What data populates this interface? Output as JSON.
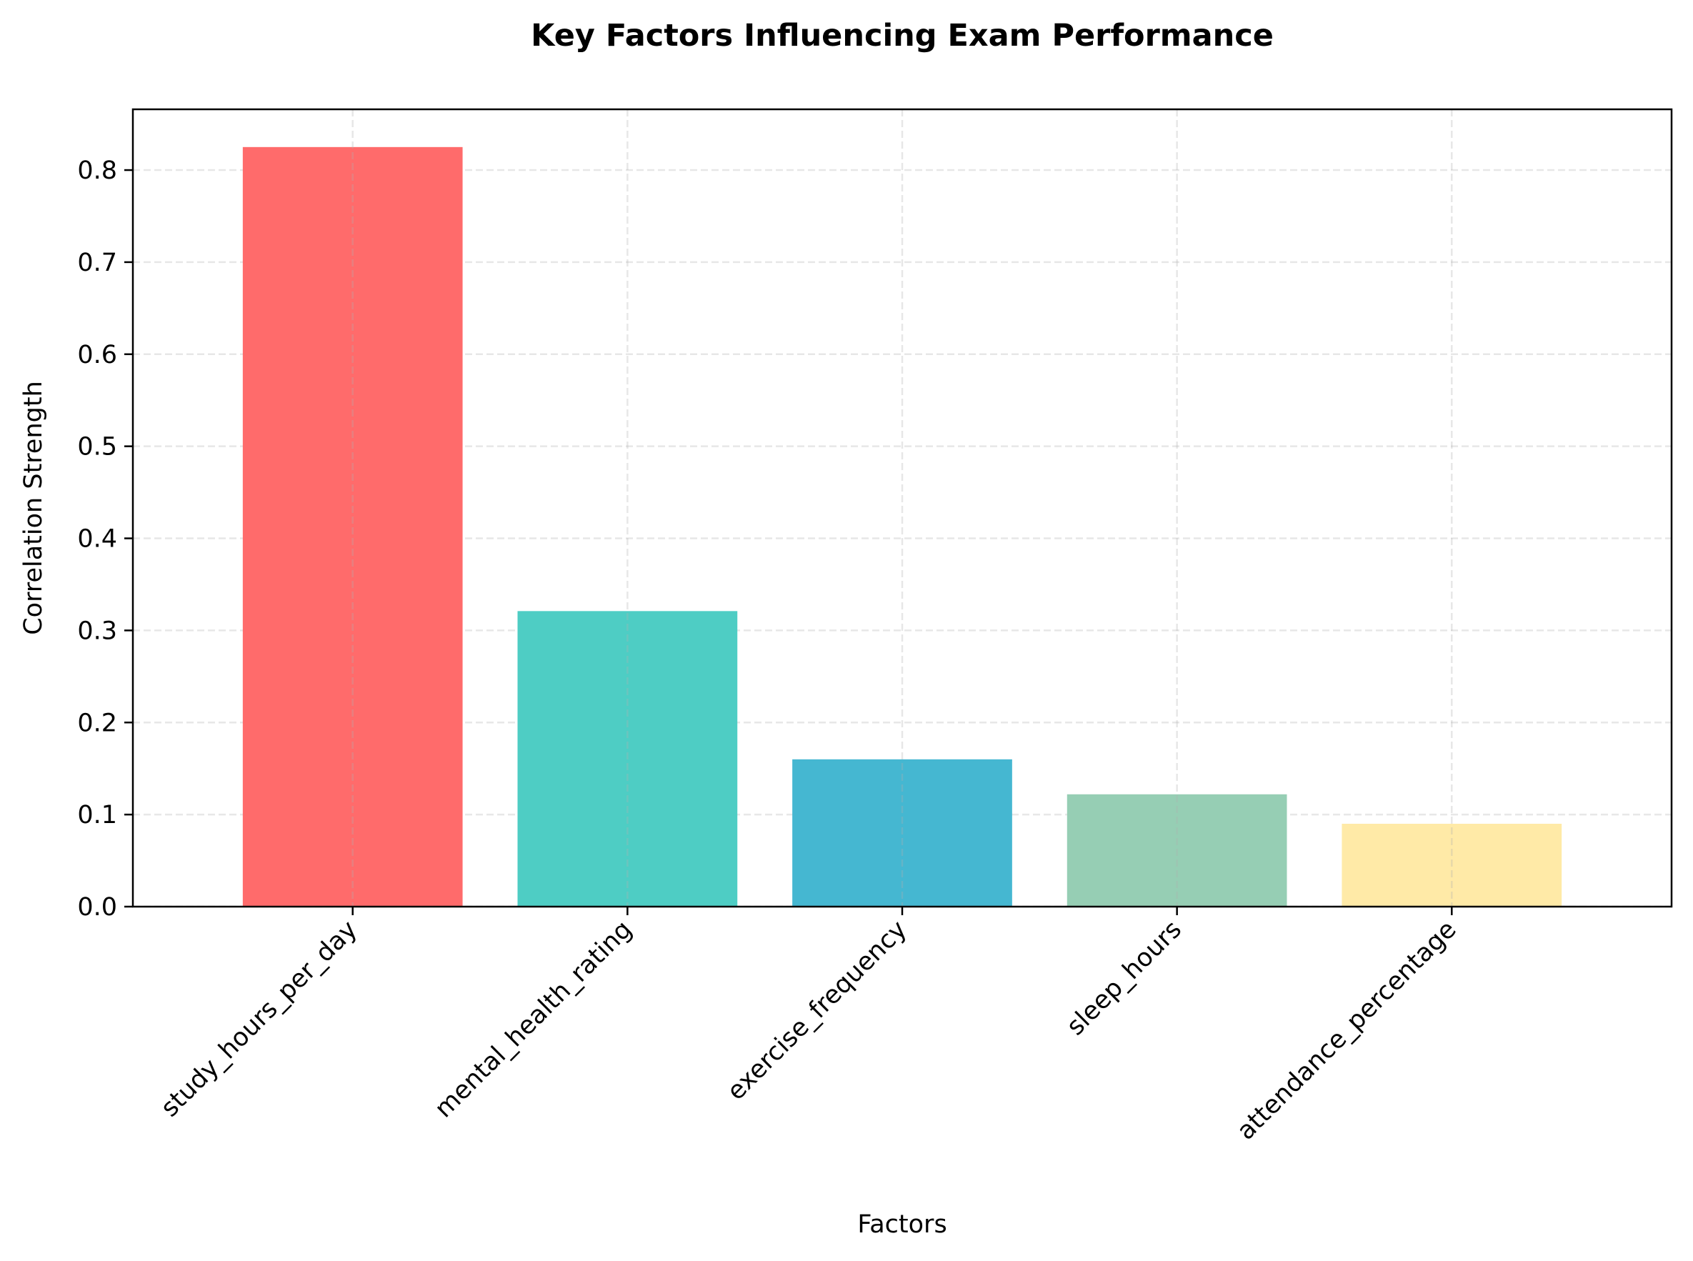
{
  "chart_data": {
    "type": "bar",
    "title": "Key Factors Influencing Exam Performance",
    "xlabel": "Factors",
    "ylabel": "Correlation Strength",
    "categories": [
      "study_hours_per_day",
      "mental_health_rating",
      "exercise_frequency",
      "sleep_hours",
      "attendance_percentage"
    ],
    "values": [
      0.825,
      0.321,
      0.16,
      0.122,
      0.09
    ],
    "colors": [
      "#FF6B6B",
      "#4ECDC4",
      "#45B7D1",
      "#96CEB4",
      "#FFEAA7"
    ],
    "ylim": [
      0,
      0.866
    ],
    "yticks": [
      0.0,
      0.1,
      0.2,
      0.3,
      0.4,
      0.5,
      0.6,
      0.7,
      0.8
    ],
    "ytick_labels": [
      "0.0",
      "0.1",
      "0.2",
      "0.3",
      "0.4",
      "0.5",
      "0.6",
      "0.7",
      "0.8"
    ],
    "grid": true,
    "legend": false
  }
}
